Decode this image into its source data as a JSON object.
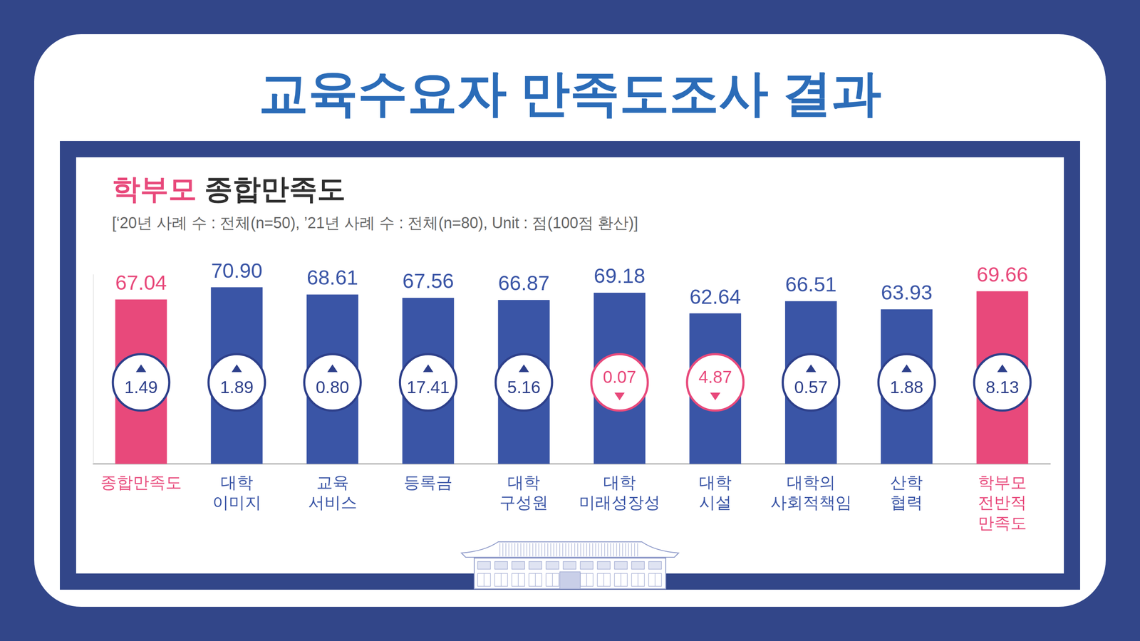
{
  "header": {
    "title": "교육수요자 만족도조사 결과"
  },
  "chart_data": {
    "type": "bar",
    "title": "학부모 종합만족도",
    "subtitle": "[‘20년 사례 수 : 전체(n=50), ’21년 사례 수 : 전체(n=80), Unit : 점(100점 환산)]",
    "categories": [
      [
        "종합만족도"
      ],
      [
        "대학",
        "이미지"
      ],
      [
        "교육",
        "서비스"
      ],
      [
        "등록금"
      ],
      [
        "대학",
        "구성원"
      ],
      [
        "대학",
        "미래성장성"
      ],
      [
        "대학",
        "시설"
      ],
      [
        "대학의",
        "사회적책임"
      ],
      [
        "산학",
        "협력"
      ],
      [
        "학부모",
        "전반적",
        "만족도"
      ]
    ],
    "values": [
      67.04,
      70.9,
      68.61,
      67.56,
      66.87,
      69.18,
      62.64,
      66.51,
      63.93,
      69.66
    ],
    "value_labels": [
      "67.04",
      "70.90",
      "68.61",
      "67.56",
      "66.87",
      "69.18",
      "62.64",
      "66.51",
      "63.93",
      "69.66"
    ],
    "colors": [
      "#e8497b",
      "#3a55a6",
      "#3a55a6",
      "#3a55a6",
      "#3a55a6",
      "#3a55a6",
      "#3a55a6",
      "#3a55a6",
      "#3a55a6",
      "#e8497b"
    ],
    "changes": [
      1.49,
      1.89,
      0.8,
      17.41,
      5.16,
      -0.07,
      -4.87,
      0.57,
      1.88,
      8.13
    ],
    "change_labels": [
      "1.49",
      "1.89",
      "0.80",
      "17.41",
      "5.16",
      "0.07",
      "4.87",
      "0.57",
      "1.88",
      "8.13"
    ],
    "ylim": [
      15,
      75
    ],
    "grid": false,
    "data_labels": true,
    "tick_labels": "x"
  }
}
